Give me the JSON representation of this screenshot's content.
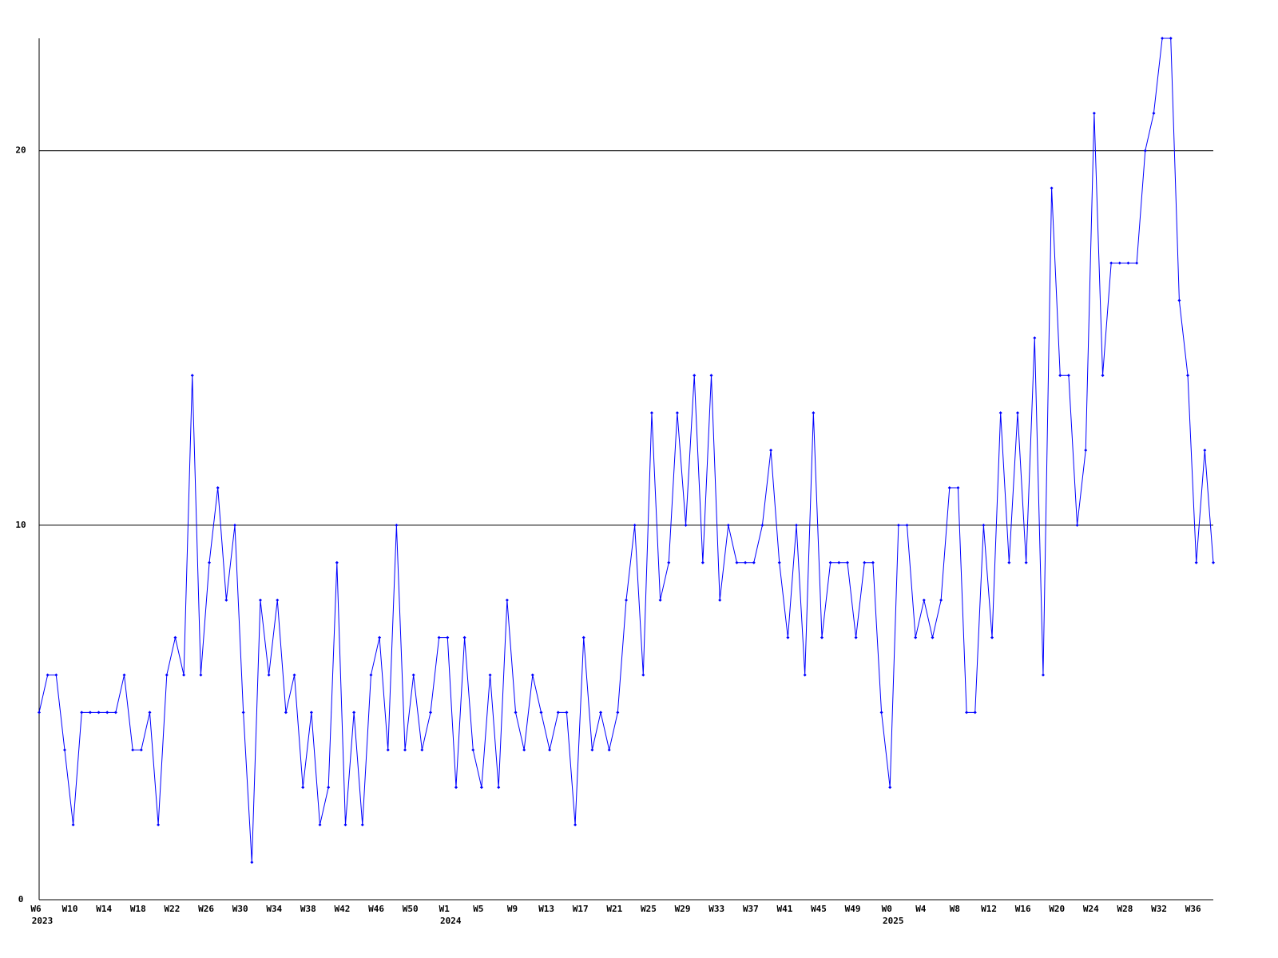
{
  "chart_data": {
    "type": "line",
    "categories": [
      "W6",
      null,
      null,
      null,
      "W10",
      null,
      null,
      null,
      "W14",
      null,
      null,
      null,
      "W18",
      null,
      null,
      null,
      "W22",
      null,
      null,
      null,
      "W26",
      null,
      null,
      null,
      "W30",
      null,
      null,
      null,
      "W34",
      null,
      null,
      null,
      "W38",
      null,
      null,
      null,
      "W42",
      null,
      null,
      null,
      "W46",
      null,
      null,
      null,
      "W50",
      null,
      null,
      null,
      "W1",
      null,
      null,
      null,
      "W5",
      null,
      null,
      null,
      "W9",
      null,
      null,
      null,
      "W13",
      null,
      null,
      null,
      "W17",
      null,
      null,
      null,
      "W21",
      null,
      null,
      null,
      "W25",
      null,
      null,
      null,
      "W29",
      null,
      null,
      null,
      "W33",
      null,
      null,
      null,
      "W37",
      null,
      null,
      null,
      "W41",
      null,
      null,
      null,
      "W45",
      null,
      null,
      null,
      "W49",
      null,
      null,
      null,
      "W0",
      null,
      null,
      null,
      "W4",
      null,
      null,
      null,
      "W8",
      null,
      null,
      null,
      "W12",
      null,
      null,
      null,
      "W16",
      null,
      null,
      null,
      "W20",
      null,
      null,
      null,
      "W24",
      null,
      null,
      null,
      "W28",
      null,
      null,
      null,
      "W32",
      null,
      null,
      null,
      "W36",
      null,
      null
    ],
    "year_labels": [
      {
        "label": "2023",
        "index": 0
      },
      {
        "label": "2024",
        "index": 48
      },
      {
        "label": "2025",
        "index": 100
      }
    ],
    "series": [
      {
        "color": "#0000ff",
        "values": [
          5,
          6,
          6,
          4,
          2,
          5,
          5,
          5,
          5,
          5,
          6,
          4,
          4,
          5,
          2,
          6,
          7,
          6,
          14,
          6,
          9,
          11,
          8,
          10,
          5,
          1,
          8,
          6,
          8,
          5,
          6,
          3,
          5,
          2,
          3,
          9,
          2,
          5,
          2,
          6,
          7,
          4,
          10,
          4,
          6,
          4,
          5,
          7,
          7,
          3,
          7,
          4,
          3,
          6,
          3,
          8,
          5,
          4,
          6,
          5,
          4,
          5,
          5,
          2,
          7,
          4,
          5,
          4,
          5,
          8,
          10,
          6,
          13,
          8,
          9,
          13,
          10,
          14,
          9,
          14,
          8,
          10,
          9,
          9,
          9,
          10,
          12,
          9,
          7,
          10,
          6,
          13,
          7,
          9,
          9,
          9,
          7,
          9,
          9,
          5,
          3,
          10,
          10,
          7,
          8,
          7,
          8,
          11,
          11,
          5,
          5,
          10,
          7,
          13,
          9,
          13,
          9,
          15,
          6,
          19,
          14,
          14,
          10,
          12,
          21,
          14,
          17,
          17,
          17,
          17,
          20,
          21,
          23,
          23,
          16,
          14,
          9,
          12,
          9
        ]
      }
    ],
    "ylim": [
      0,
      23
    ],
    "yticks": [
      0,
      10,
      20
    ],
    "grid": true
  }
}
